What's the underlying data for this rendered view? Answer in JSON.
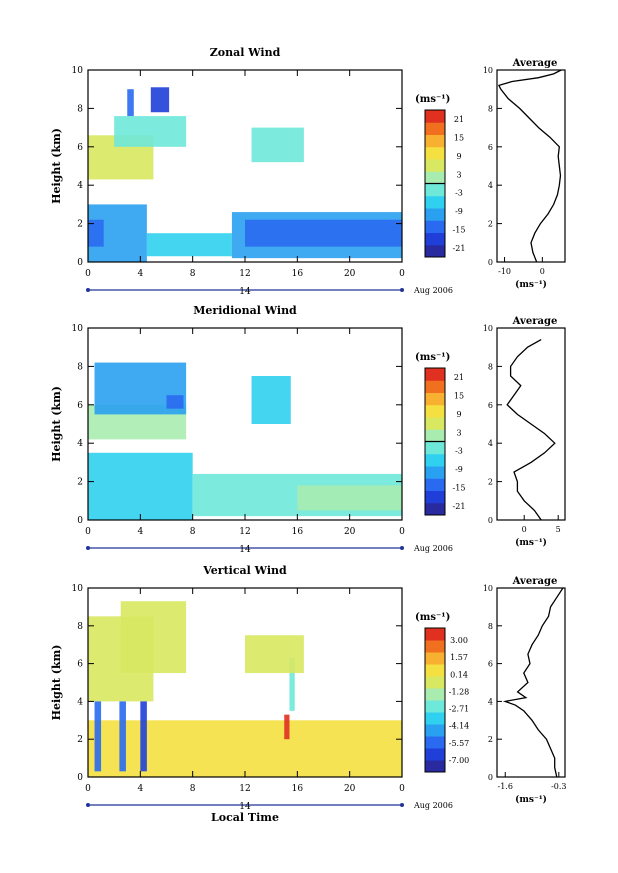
{
  "figure": {
    "date_label": "Aug 2006",
    "day_label": "14",
    "xlabel_bottom": "Local Time",
    "ylabel": "Height (km)",
    "unit_label": "(ms⁻¹)",
    "average_title": "Average"
  },
  "chart_data": [
    {
      "id": "zonal",
      "type": "heatmap",
      "title": "Zonal Wind",
      "xlabel": "",
      "ylabel": "Height (km)",
      "x_ticks": [
        "0",
        "4",
        "8",
        "12",
        "16",
        "20",
        "0"
      ],
      "y_ticks": [
        "0",
        "2",
        "4",
        "6",
        "8",
        "10"
      ],
      "xlim": [
        0,
        24
      ],
      "ylim": [
        0,
        10
      ],
      "colorbar": {
        "ticks": [
          "21",
          "15",
          "9",
          "3",
          "-3",
          "-9",
          "-15",
          "-21"
        ],
        "range": [
          -24,
          24
        ],
        "zero_line": 0
      },
      "regions": [
        {
          "x0": 0.0,
          "x1": 4.5,
          "y0": 0.0,
          "y1": 3.0,
          "value": -9
        },
        {
          "x0": 0.0,
          "x1": 1.2,
          "y0": 0.8,
          "y1": 2.2,
          "value": -15
        },
        {
          "x0": 4.5,
          "x1": 11.0,
          "y0": 0.3,
          "y1": 1.5,
          "value": -7
        },
        {
          "x0": 11.0,
          "x1": 24.0,
          "y0": 0.2,
          "y1": 2.6,
          "value": -10
        },
        {
          "x0": 12.0,
          "x1": 24.0,
          "y0": 0.8,
          "y1": 2.2,
          "value": -13
        },
        {
          "x0": 0.0,
          "x1": 5.0,
          "y0": 4.3,
          "y1": 6.6,
          "value": 4
        },
        {
          "x0": 2.0,
          "x1": 7.5,
          "y0": 6.0,
          "y1": 7.6,
          "value": -1
        },
        {
          "x0": 3.0,
          "x1": 3.5,
          "y0": 7.6,
          "y1": 9.0,
          "value": -14
        },
        {
          "x0": 4.8,
          "x1": 6.2,
          "y0": 7.8,
          "y1": 9.1,
          "value": -19
        },
        {
          "x0": 12.5,
          "x1": 16.5,
          "y0": 5.2,
          "y1": 7.0,
          "value": -2
        }
      ],
      "average": {
        "x_ticks": [
          "-10",
          "0"
        ],
        "xlim": [
          -12,
          6
        ],
        "y": [
          0,
          0.5,
          1,
          1.5,
          2,
          2.5,
          3,
          3.5,
          4,
          4.5,
          5,
          5.5,
          6,
          6.5,
          7,
          7.5,
          8,
          8.5,
          9,
          9.2,
          9.4,
          9.6,
          9.8,
          10
        ],
        "x": [
          -1.5,
          -2.5,
          -3,
          -2,
          -0.5,
          1.5,
          3,
          4,
          4.5,
          4.8,
          4.5,
          4.2,
          4.5,
          2,
          -1,
          -3.5,
          -6,
          -9,
          -11,
          -11.5,
          -8,
          -1,
          3,
          5
        ]
      }
    },
    {
      "id": "meridional",
      "type": "heatmap",
      "title": "Meridional Wind",
      "xlabel": "",
      "ylabel": "Height (km)",
      "x_ticks": [
        "0",
        "4",
        "8",
        "12",
        "16",
        "20",
        "0"
      ],
      "y_ticks": [
        "0",
        "2",
        "4",
        "6",
        "8",
        "10"
      ],
      "xlim": [
        0,
        24
      ],
      "ylim": [
        0,
        10
      ],
      "colorbar": {
        "ticks": [
          "21",
          "15",
          "9",
          "3",
          "-3",
          "-9",
          "-15",
          "-21"
        ],
        "range": [
          -24,
          24
        ],
        "zero_line": 0
      },
      "regions": [
        {
          "x0": 0.0,
          "x1": 8.0,
          "y0": 0.0,
          "y1": 3.5,
          "value": -6
        },
        {
          "x0": 8.0,
          "x1": 24.0,
          "y0": 0.2,
          "y1": 2.4,
          "value": -3
        },
        {
          "x0": 16.0,
          "x1": 24.0,
          "y0": 0.5,
          "y1": 1.8,
          "value": 3
        },
        {
          "x0": 0.0,
          "x1": 7.5,
          "y0": 4.2,
          "y1": 6.0,
          "value": 2
        },
        {
          "x0": 0.5,
          "x1": 7.5,
          "y0": 5.5,
          "y1": 8.2,
          "value": -10
        },
        {
          "x0": 6.0,
          "x1": 7.3,
          "y0": 5.8,
          "y1": 6.5,
          "value": -16
        },
        {
          "x0": 12.5,
          "x1": 15.5,
          "y0": 5.0,
          "y1": 7.5,
          "value": -6
        }
      ],
      "average": {
        "x_ticks": [
          "0",
          "5"
        ],
        "xlim": [
          -4,
          6
        ],
        "y": [
          0,
          0.5,
          1,
          1.5,
          2,
          2.5,
          3,
          3.5,
          4,
          4.5,
          5,
          5.5,
          6,
          6.5,
          7,
          7.5,
          8,
          8.5,
          9,
          9.4
        ],
        "x": [
          2.5,
          1.5,
          0,
          -1,
          -1,
          -1.5,
          1,
          3,
          4.5,
          3,
          1,
          -1,
          -2.5,
          -1.5,
          -0.5,
          -2,
          -2,
          -1,
          0.5,
          2.5
        ]
      }
    },
    {
      "id": "vertical",
      "type": "heatmap",
      "title": "Vertical Wind",
      "xlabel": "Local Time",
      "ylabel": "Height (km)",
      "x_ticks": [
        "0",
        "4",
        "8",
        "12",
        "16",
        "20",
        "0"
      ],
      "y_ticks": [
        "0",
        "2",
        "4",
        "6",
        "8",
        "10"
      ],
      "xlim": [
        0,
        24
      ],
      "ylim": [
        0,
        10
      ],
      "colorbar": {
        "ticks": [
          "3.00",
          "1.57",
          "0.14",
          "-1.28",
          "-2.71",
          "-4.14",
          "-5.57",
          "-7.00"
        ],
        "range": [
          -8,
          4
        ],
        "zero_line": null
      },
      "regions": [
        {
          "x0": 0.0,
          "x1": 24.0,
          "y0": 0.0,
          "y1": 3.0,
          "value": 0.8
        },
        {
          "x0": 0.0,
          "x1": 5.0,
          "y0": 4.0,
          "y1": 8.5,
          "value": -0.7
        },
        {
          "x0": 2.5,
          "x1": 7.5,
          "y0": 5.5,
          "y1": 9.3,
          "value": -0.2
        },
        {
          "x0": 0.5,
          "x1": 1.0,
          "y0": 0.3,
          "y1": 4.0,
          "value": -5.5
        },
        {
          "x0": 2.4,
          "x1": 2.9,
          "y0": 0.3,
          "y1": 4.0,
          "value": -6.0
        },
        {
          "x0": 4.0,
          "x1": 4.5,
          "y0": 0.3,
          "y1": 4.0,
          "value": -6.2
        },
        {
          "x0": 15.0,
          "x1": 15.4,
          "y0": 2.0,
          "y1": 3.3,
          "value": 3.0
        },
        {
          "x0": 15.4,
          "x1": 15.8,
          "y0": 3.5,
          "y1": 6.3,
          "value": -2.5
        },
        {
          "x0": 12.0,
          "x1": 16.5,
          "y0": 5.5,
          "y1": 7.5,
          "value": -0.5
        }
      ],
      "average": {
        "x_ticks": [
          "-1.6",
          "-0.3"
        ],
        "xlim": [
          -1.8,
          -0.15
        ],
        "y": [
          0,
          0.5,
          1,
          1.5,
          2,
          2.5,
          3,
          3.5,
          3.8,
          4,
          4.2,
          4.5,
          5,
          5.5,
          6,
          6.5,
          7,
          7.5,
          8,
          8.5,
          9,
          9.5,
          10
        ],
        "x": [
          -0.35,
          -0.4,
          -0.4,
          -0.5,
          -0.6,
          -0.8,
          -0.95,
          -1.15,
          -1.35,
          -1.6,
          -1.1,
          -1.3,
          -1.05,
          -1.15,
          -1.0,
          -1.05,
          -0.95,
          -0.8,
          -0.7,
          -0.55,
          -0.5,
          -0.35,
          -0.2
        ]
      }
    }
  ]
}
